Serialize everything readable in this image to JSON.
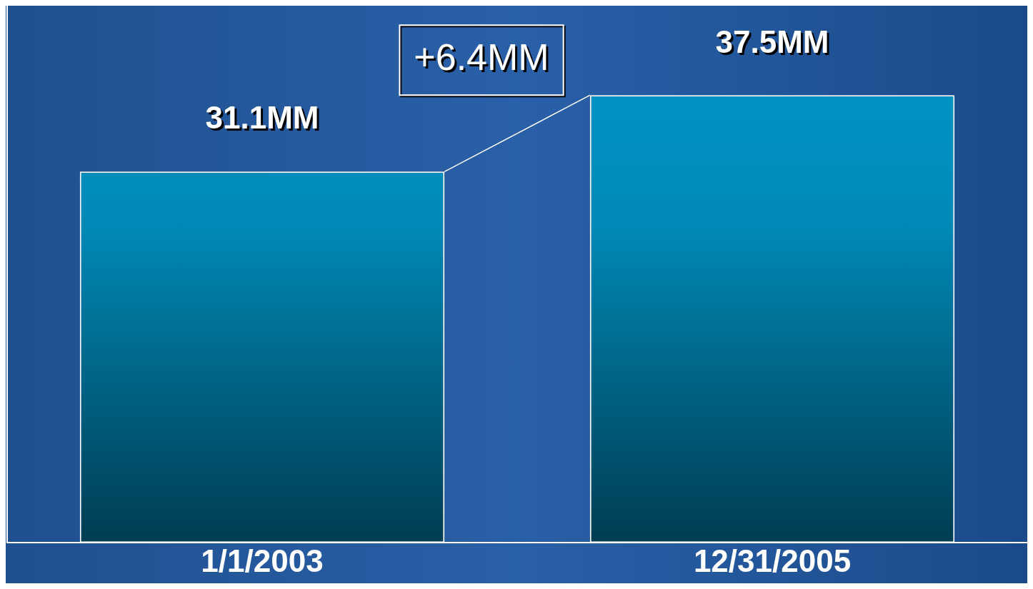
{
  "chart_data": {
    "type": "bar",
    "categories": [
      "1/1/2003",
      "12/31/2005"
    ],
    "values": [
      31.1,
      37.5
    ],
    "value_labels": [
      "31.1MM",
      "37.5MM"
    ],
    "color": "#0099cc",
    "relative": false,
    "tick_labels": "x",
    "grid": false,
    "legend": false,
    "annotations": [
      "+6.4MM"
    ]
  }
}
